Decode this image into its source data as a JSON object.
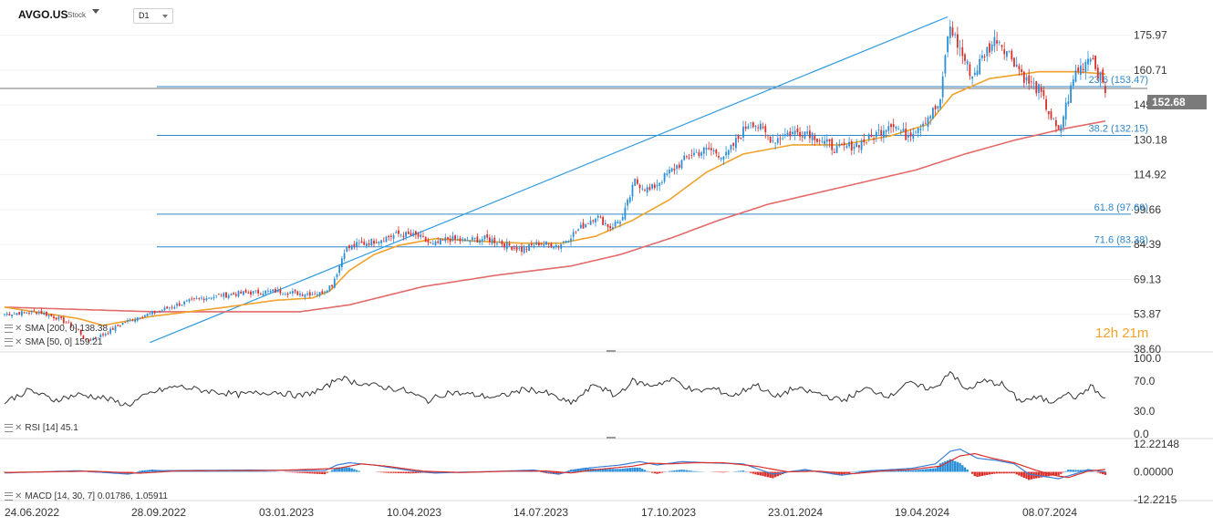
{
  "header": {
    "symbol": "AVGO.US",
    "asset_type": "Stock",
    "timeframe": "D1"
  },
  "last_price": "152.68",
  "timer": {
    "hours": "12",
    "h": "h",
    "minutes": "21",
    "m": "m"
  },
  "legends": {
    "sma200": "SMA [200, 0] 138.38",
    "sma50": "SMA [50, 0] 159.21",
    "rsi": "RSI [14] 45.1",
    "macd": "MACD [14, 30, 7] 0.01786, 1.05911"
  },
  "colors": {
    "up": "#2b8fd8",
    "down": "#d9302b",
    "sma200": "#e36a6a",
    "sma50": "#f0a22a",
    "fib": "#2f86c8",
    "trend": "#2f9ae0",
    "macd": "#3a7fd8",
    "signal": "#d9302b"
  },
  "chart_data": [
    {
      "type": "candlestick",
      "name": "AVGO.US D1",
      "ylim": [
        38.6,
        185
      ],
      "yticks": [
        "175.97",
        "160.71",
        "145.45",
        "130.18",
        "114.92",
        "99.66",
        "84.39",
        "69.13",
        "53.87",
        "38.60"
      ],
      "xticks": [
        "24.06.2022",
        "28.09.2022",
        "03.01.2023",
        "10.04.2023",
        "14.07.2023",
        "17.10.2023",
        "23.01.2024",
        "19.04.2024",
        "08.07.2024"
      ],
      "close_anchors": [
        [
          0,
          54
        ],
        [
          14,
          55
        ],
        [
          22,
          52
        ],
        [
          30,
          47
        ],
        [
          33,
          42
        ],
        [
          40,
          45
        ],
        [
          48,
          50
        ],
        [
          55,
          53
        ],
        [
          62,
          55
        ],
        [
          70,
          58
        ],
        [
          80,
          61
        ],
        [
          95,
          63
        ],
        [
          110,
          64
        ],
        [
          120,
          63
        ],
        [
          128,
          63
        ],
        [
          133,
          67
        ],
        [
          136,
          75
        ],
        [
          138,
          82
        ],
        [
          142,
          84
        ],
        [
          150,
          86
        ],
        [
          160,
          89
        ],
        [
          168,
          88
        ],
        [
          174,
          84
        ],
        [
          180,
          87
        ],
        [
          186,
          86
        ],
        [
          196,
          87
        ],
        [
          202,
          85
        ],
        [
          210,
          82
        ],
        [
          217,
          85
        ],
        [
          225,
          84
        ],
        [
          232,
          90
        ],
        [
          240,
          97
        ],
        [
          246,
          92
        ],
        [
          251,
          96
        ],
        [
          256,
          112
        ],
        [
          262,
          108
        ],
        [
          270,
          116
        ],
        [
          279,
          124
        ],
        [
          286,
          126
        ],
        [
          293,
          123
        ],
        [
          298,
          131
        ],
        [
          303,
          139
        ],
        [
          306,
          136
        ],
        [
          312,
          130
        ],
        [
          318,
          133
        ],
        [
          326,
          134
        ],
        [
          333,
          129
        ],
        [
          338,
          126
        ],
        [
          345,
          128
        ],
        [
          352,
          131
        ],
        [
          360,
          138
        ],
        [
          366,
          132
        ],
        [
          372,
          137
        ],
        [
          380,
          146
        ],
        [
          382,
          168
        ],
        [
          384,
          180
        ],
        [
          387,
          172
        ],
        [
          393,
          158
        ],
        [
          398,
          168
        ],
        [
          403,
          175
        ],
        [
          410,
          165
        ],
        [
          415,
          156
        ],
        [
          420,
          152
        ],
        [
          425,
          140
        ],
        [
          428,
          133
        ],
        [
          431,
          145
        ],
        [
          435,
          160
        ],
        [
          438,
          163
        ],
        [
          441,
          168
        ],
        [
          444,
          160
        ],
        [
          447,
          152
        ]
      ],
      "sma50_anchors": [
        [
          0,
          57
        ],
        [
          30,
          52
        ],
        [
          40,
          49
        ],
        [
          50,
          51
        ],
        [
          60,
          53
        ],
        [
          90,
          57
        ],
        [
          110,
          60
        ],
        [
          125,
          61
        ],
        [
          132,
          64
        ],
        [
          140,
          73
        ],
        [
          150,
          80
        ],
        [
          160,
          84
        ],
        [
          175,
          87
        ],
        [
          190,
          86
        ],
        [
          210,
          85
        ],
        [
          226,
          85
        ],
        [
          240,
          88
        ],
        [
          255,
          95
        ],
        [
          270,
          104
        ],
        [
          285,
          116
        ],
        [
          300,
          124
        ],
        [
          320,
          128
        ],
        [
          340,
          128
        ],
        [
          360,
          132
        ],
        [
          375,
          137
        ],
        [
          385,
          150
        ],
        [
          400,
          157
        ],
        [
          420,
          160
        ],
        [
          435,
          160
        ],
        [
          447,
          159
        ]
      ],
      "sma200_anchors": [
        [
          0,
          57
        ],
        [
          60,
          55
        ],
        [
          100,
          55
        ],
        [
          120,
          55
        ],
        [
          140,
          58
        ],
        [
          170,
          66
        ],
        [
          200,
          71
        ],
        [
          230,
          75
        ],
        [
          250,
          80
        ],
        [
          270,
          87
        ],
        [
          290,
          95
        ],
        [
          310,
          102
        ],
        [
          330,
          107
        ],
        [
          350,
          112
        ],
        [
          370,
          117
        ],
        [
          390,
          124
        ],
        [
          410,
          130
        ],
        [
          430,
          135
        ],
        [
          447,
          138.4
        ]
      ],
      "fibonacci": [
        {
          "level": "23.6",
          "price": 153.47,
          "label": "23.6 (153.47)"
        },
        {
          "level": "38.2",
          "price": 132.15,
          "label": "38.2 (132.15)"
        },
        {
          "level": "61.8",
          "price": 97.69,
          "label": "61.8 (97.69)"
        },
        {
          "level": "71.6",
          "price": 83.38,
          "label": "71.6 (83.38)"
        }
      ],
      "trendline": {
        "from": [
          59,
          41.5
        ],
        "to": [
          383,
          184
        ]
      },
      "horizontal_line": 152.68
    },
    {
      "type": "line",
      "name": "RSI",
      "ylim": [
        0,
        100
      ],
      "yticks": [
        "100.0",
        "70.0",
        "30.0",
        "0.0"
      ],
      "anchors": [
        [
          0,
          42
        ],
        [
          10,
          58
        ],
        [
          20,
          45
        ],
        [
          30,
          52
        ],
        [
          40,
          48
        ],
        [
          50,
          38
        ],
        [
          60,
          55
        ],
        [
          70,
          63
        ],
        [
          80,
          58
        ],
        [
          95,
          52
        ],
        [
          110,
          56
        ],
        [
          120,
          50
        ],
        [
          130,
          60
        ],
        [
          136,
          76
        ],
        [
          140,
          70
        ],
        [
          150,
          64
        ],
        [
          162,
          58
        ],
        [
          172,
          44
        ],
        [
          180,
          55
        ],
        [
          190,
          52
        ],
        [
          200,
          48
        ],
        [
          212,
          60
        ],
        [
          220,
          54
        ],
        [
          230,
          40
        ],
        [
          240,
          66
        ],
        [
          248,
          50
        ],
        [
          255,
          70
        ],
        [
          262,
          64
        ],
        [
          272,
          72
        ],
        [
          280,
          56
        ],
        [
          288,
          60
        ],
        [
          296,
          50
        ],
        [
          305,
          66
        ],
        [
          313,
          48
        ],
        [
          320,
          60
        ],
        [
          330,
          54
        ],
        [
          340,
          44
        ],
        [
          350,
          60
        ],
        [
          360,
          50
        ],
        [
          366,
          68
        ],
        [
          372,
          62
        ],
        [
          378,
          60
        ],
        [
          384,
          84
        ],
        [
          390,
          58
        ],
        [
          398,
          70
        ],
        [
          405,
          66
        ],
        [
          412,
          44
        ],
        [
          420,
          48
        ],
        [
          425,
          42
        ],
        [
          430,
          54
        ],
        [
          436,
          48
        ],
        [
          441,
          64
        ],
        [
          447,
          45.1
        ]
      ]
    },
    {
      "type": "bar+line",
      "name": "MACD",
      "ylim": [
        -12.2215,
        12.22148
      ],
      "yticks": [
        "12.22148",
        "0.00000",
        "-12.2215"
      ],
      "macd_anchors": [
        [
          0,
          -0.5
        ],
        [
          30,
          0.5
        ],
        [
          50,
          -1
        ],
        [
          60,
          0.5
        ],
        [
          100,
          0.8
        ],
        [
          130,
          0.5
        ],
        [
          135,
          3
        ],
        [
          140,
          4
        ],
        [
          150,
          3
        ],
        [
          165,
          0.5
        ],
        [
          175,
          -0.5
        ],
        [
          200,
          0.2
        ],
        [
          215,
          0.8
        ],
        [
          225,
          -1
        ],
        [
          235,
          1.5
        ],
        [
          250,
          3
        ],
        [
          258,
          4.5
        ],
        [
          265,
          3
        ],
        [
          275,
          4.5
        ],
        [
          285,
          4
        ],
        [
          300,
          3.5
        ],
        [
          312,
          -1
        ],
        [
          325,
          1
        ],
        [
          340,
          -1.5
        ],
        [
          352,
          0.5
        ],
        [
          360,
          1
        ],
        [
          368,
          1.5
        ],
        [
          378,
          3.5
        ],
        [
          384,
          9
        ],
        [
          388,
          10
        ],
        [
          395,
          6
        ],
        [
          403,
          5
        ],
        [
          410,
          3.5
        ],
        [
          416,
          -1
        ],
        [
          422,
          -2
        ],
        [
          428,
          -3
        ],
        [
          436,
          -0.5
        ],
        [
          440,
          1
        ],
        [
          447,
          0.02
        ]
      ],
      "signal_anchors": [
        [
          0,
          -0.3
        ],
        [
          35,
          0.3
        ],
        [
          55,
          -0.6
        ],
        [
          70,
          0.4
        ],
        [
          110,
          0.6
        ],
        [
          135,
          1.5
        ],
        [
          145,
          3.5
        ],
        [
          155,
          2.5
        ],
        [
          170,
          0.3
        ],
        [
          185,
          -0.3
        ],
        [
          205,
          0.3
        ],
        [
          220,
          0.4
        ],
        [
          230,
          -0.5
        ],
        [
          240,
          1
        ],
        [
          255,
          2.5
        ],
        [
          262,
          3.8
        ],
        [
          270,
          3.5
        ],
        [
          280,
          4
        ],
        [
          292,
          4
        ],
        [
          305,
          2.5
        ],
        [
          318,
          0
        ],
        [
          330,
          0.3
        ],
        [
          345,
          -0.8
        ],
        [
          358,
          0.5
        ],
        [
          368,
          1
        ],
        [
          380,
          2.5
        ],
        [
          388,
          7
        ],
        [
          394,
          8
        ],
        [
          401,
          6
        ],
        [
          410,
          4
        ],
        [
          418,
          1
        ],
        [
          426,
          -1.5
        ],
        [
          432,
          -2.5
        ],
        [
          440,
          0.3
        ],
        [
          447,
          1.06
        ]
      ]
    }
  ]
}
